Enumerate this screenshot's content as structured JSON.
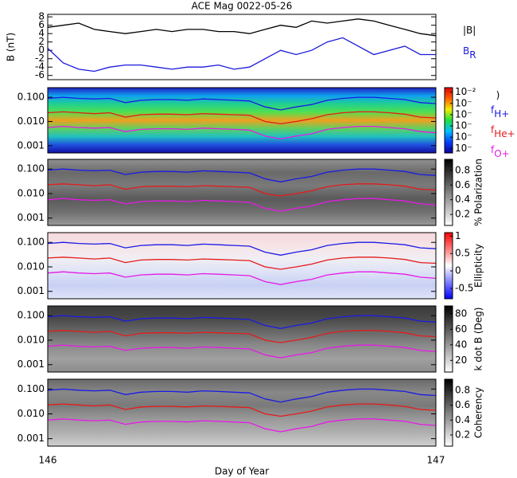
{
  "chart_data": [
    {
      "type": "line",
      "title": "ACE Mag 0022-05-26",
      "ylabel": "B (nT)",
      "xlim": [
        146,
        147
      ],
      "ylim": [
        -7,
        8.6
      ],
      "yticks": [
        -6,
        -4,
        -2,
        0,
        2,
        4,
        6,
        8
      ],
      "x": [
        146,
        146.04,
        146.08,
        146.12,
        146.16,
        146.2,
        146.24,
        146.28,
        146.32,
        146.36,
        146.4,
        146.44,
        146.48,
        146.52,
        146.56,
        146.6,
        146.64,
        146.68,
        146.72,
        146.76,
        146.8,
        146.84,
        146.88,
        146.92,
        146.96,
        147
      ],
      "series": [
        {
          "name": "|B|",
          "color": "#000000",
          "values": [
            5.5,
            6,
            6.5,
            5,
            4.5,
            4,
            4.5,
            5,
            4.5,
            5,
            5,
            4.5,
            4.5,
            4,
            5,
            6,
            5.5,
            7,
            6.5,
            7,
            7.5,
            7,
            6,
            5,
            4,
            3.5
          ]
        },
        {
          "name": "B",
          "name_sub": "R",
          "color": "#1a1adc",
          "values": [
            0.5,
            -3,
            -4.5,
            -5,
            -4,
            -3.5,
            -3.5,
            -4,
            -4.5,
            -4,
            -4,
            -3.5,
            -4.5,
            -4,
            -2,
            0,
            -1,
            0,
            2,
            3,
            1,
            -1,
            0,
            1,
            -1,
            -1
          ]
        }
      ]
    },
    {
      "type": "spectrogram",
      "ylim": [
        0.0005,
        0.25
      ],
      "log": true,
      "yticks": [
        {
          "value": 0.001,
          "label": "0.001"
        },
        {
          "value": 0.01,
          "label": "0.010"
        },
        {
          "value": 0.1,
          "label": "0.100"
        }
      ],
      "xlim": [
        146,
        147
      ],
      "x": [
        146,
        146.04,
        146.08,
        146.12,
        146.16,
        146.2,
        146.24,
        146.28,
        146.32,
        146.36,
        146.4,
        146.44,
        146.48,
        146.52,
        146.56,
        146.6,
        146.64,
        146.68,
        146.72,
        146.76,
        146.8,
        146.84,
        146.88,
        146.92,
        146.96,
        147
      ],
      "background": [
        "#2020c0",
        "#10a0f0",
        "#20d090",
        "#50e050",
        "#f0a020",
        "#60d060",
        "#20c0c0",
        "#2050e0",
        "#1010a0"
      ],
      "colorbar": {
        "label": ")",
        "lim": [
          -7.4,
          -1.6
        ],
        "colors": [
          "#10009a",
          "#0040ff",
          "#00c0ff",
          "#20e040",
          "#f0f000",
          "#ff6000",
          "#e00000"
        ],
        "ticks": [
          {
            "value": -2,
            "label": "10⁻²"
          },
          {
            "value": -3,
            "label": "10⁻"
          },
          {
            "value": -4,
            "label": "10⁻"
          },
          {
            "value": -5,
            "label": "10⁻"
          },
          {
            "value": -6,
            "label": "10⁻"
          },
          {
            "value": -7,
            "label": "10⁻"
          }
        ]
      },
      "series": [
        {
          "name": "f",
          "name_sub": "H+",
          "color": "#1a1ae6",
          "values": [
            0.09,
            0.1,
            0.09,
            0.085,
            0.09,
            0.06,
            0.075,
            0.08,
            0.08,
            0.075,
            0.085,
            0.08,
            0.075,
            0.07,
            0.04,
            0.03,
            0.04,
            0.05,
            0.075,
            0.09,
            0.1,
            0.1,
            0.09,
            0.08,
            0.06,
            0.055
          ]
        },
        {
          "name": "f",
          "name_sub": "He+",
          "color": "#e61a1a",
          "values": [
            0.023,
            0.025,
            0.023,
            0.021,
            0.023,
            0.015,
            0.019,
            0.02,
            0.02,
            0.019,
            0.021,
            0.02,
            0.019,
            0.018,
            0.01,
            0.008,
            0.01,
            0.013,
            0.019,
            0.023,
            0.025,
            0.025,
            0.023,
            0.02,
            0.015,
            0.014
          ]
        },
        {
          "name": "f",
          "name_sub": "O+",
          "color": "#e61ae6",
          "values": [
            0.0056,
            0.0063,
            0.0056,
            0.0053,
            0.0056,
            0.0038,
            0.0047,
            0.005,
            0.005,
            0.0047,
            0.0053,
            0.005,
            0.0047,
            0.0044,
            0.0025,
            0.0019,
            0.0025,
            0.0031,
            0.0047,
            0.0056,
            0.0063,
            0.0063,
            0.0056,
            0.005,
            0.0038,
            0.0034
          ]
        }
      ]
    },
    {
      "type": "spectrogram",
      "ylim": [
        0.0005,
        0.25
      ],
      "log": true,
      "yticks": [
        {
          "value": 0.001,
          "label": "0.001"
        },
        {
          "value": 0.01,
          "label": "0.010"
        },
        {
          "value": 0.1,
          "label": "0.100"
        }
      ],
      "xlim": [
        146,
        147
      ],
      "x": [
        146,
        146.04,
        146.08,
        146.12,
        146.16,
        146.2,
        146.24,
        146.28,
        146.32,
        146.36,
        146.4,
        146.44,
        146.48,
        146.52,
        146.56,
        146.6,
        146.64,
        146.68,
        146.72,
        146.76,
        146.8,
        146.84,
        146.88,
        146.92,
        146.96,
        147
      ],
      "background": [
        "#909090",
        "#6a6a6a",
        "#7a7a7a",
        "#5a5a5a",
        "#707070",
        "#9a9a9a"
      ],
      "colorbar": {
        "label": "% Polarization",
        "lim": [
          0.05,
          0.95
        ],
        "colors": [
          "#ffffff",
          "#000000"
        ],
        "ticks": [
          0.2,
          0.4,
          0.6,
          0.8
        ]
      },
      "series": [
        {
          "color": "#1a1ae6",
          "values": [
            0.09,
            0.1,
            0.09,
            0.085,
            0.09,
            0.06,
            0.075,
            0.08,
            0.08,
            0.075,
            0.085,
            0.08,
            0.075,
            0.07,
            0.04,
            0.03,
            0.04,
            0.05,
            0.075,
            0.09,
            0.1,
            0.1,
            0.09,
            0.08,
            0.06,
            0.055
          ]
        },
        {
          "color": "#e61a1a",
          "values": [
            0.023,
            0.025,
            0.023,
            0.021,
            0.023,
            0.015,
            0.019,
            0.02,
            0.02,
            0.019,
            0.021,
            0.02,
            0.019,
            0.018,
            0.01,
            0.008,
            0.01,
            0.013,
            0.019,
            0.023,
            0.025,
            0.025,
            0.023,
            0.02,
            0.015,
            0.014
          ]
        },
        {
          "color": "#e61ae6",
          "values": [
            0.0056,
            0.0063,
            0.0056,
            0.0053,
            0.0056,
            0.0038,
            0.0047,
            0.005,
            0.005,
            0.0047,
            0.0053,
            0.005,
            0.0047,
            0.0044,
            0.0025,
            0.0019,
            0.0025,
            0.0031,
            0.0047,
            0.0056,
            0.0063,
            0.0063,
            0.0056,
            0.005,
            0.0038,
            0.0034
          ]
        }
      ]
    },
    {
      "type": "spectrogram",
      "ylim": [
        0.0005,
        0.25
      ],
      "log": true,
      "yticks": [
        {
          "value": 0.001,
          "label": "0.001"
        },
        {
          "value": 0.01,
          "label": "0.010"
        },
        {
          "value": 0.1,
          "label": "0.100"
        }
      ],
      "xlim": [
        146,
        147
      ],
      "x": [
        146,
        146.04,
        146.08,
        146.12,
        146.16,
        146.2,
        146.24,
        146.28,
        146.32,
        146.36,
        146.4,
        146.44,
        146.48,
        146.52,
        146.56,
        146.6,
        146.64,
        146.68,
        146.72,
        146.76,
        146.8,
        146.84,
        146.88,
        146.92,
        146.96,
        147
      ],
      "background": [
        "#f4d8dc",
        "#f6e4e6",
        "#f0eef4",
        "#dde2f6",
        "#c8d0f4",
        "#e0e4f8"
      ],
      "colorbar": {
        "label": "Ellipticity",
        "lim": [
          -0.8,
          1.1
        ],
        "colors": [
          "#0000ff",
          "#ffffff",
          "#ff0000"
        ],
        "ticks": [
          -0.5,
          0,
          0.5,
          1
        ]
      },
      "series": [
        {
          "color": "#1a1ae6",
          "values": [
            0.09,
            0.1,
            0.09,
            0.085,
            0.09,
            0.06,
            0.075,
            0.08,
            0.08,
            0.075,
            0.085,
            0.08,
            0.075,
            0.07,
            0.04,
            0.03,
            0.04,
            0.05,
            0.075,
            0.09,
            0.1,
            0.1,
            0.09,
            0.08,
            0.06,
            0.055
          ]
        },
        {
          "color": "#e61a1a",
          "values": [
            0.023,
            0.025,
            0.023,
            0.021,
            0.023,
            0.015,
            0.019,
            0.02,
            0.02,
            0.019,
            0.021,
            0.02,
            0.019,
            0.018,
            0.01,
            0.008,
            0.01,
            0.013,
            0.019,
            0.023,
            0.025,
            0.025,
            0.023,
            0.02,
            0.015,
            0.014
          ]
        },
        {
          "color": "#e61ae6",
          "values": [
            0.0056,
            0.0063,
            0.0056,
            0.0053,
            0.0056,
            0.0038,
            0.0047,
            0.005,
            0.005,
            0.0047,
            0.0053,
            0.005,
            0.0047,
            0.0044,
            0.0025,
            0.0019,
            0.0025,
            0.0031,
            0.0047,
            0.0056,
            0.0063,
            0.0063,
            0.0056,
            0.005,
            0.0038,
            0.0034
          ]
        }
      ]
    },
    {
      "type": "spectrogram",
      "ylim": [
        0.0005,
        0.25
      ],
      "log": true,
      "yticks": [
        {
          "value": 0.001,
          "label": "0.001"
        },
        {
          "value": 0.01,
          "label": "0.010"
        },
        {
          "value": 0.1,
          "label": "0.100"
        }
      ],
      "xlim": [
        146,
        147
      ],
      "x": [
        146,
        146.04,
        146.08,
        146.12,
        146.16,
        146.2,
        146.24,
        146.28,
        146.32,
        146.36,
        146.4,
        146.44,
        146.48,
        146.52,
        146.56,
        146.6,
        146.64,
        146.68,
        146.72,
        146.76,
        146.8,
        146.84,
        146.88,
        146.92,
        146.96,
        147
      ],
      "background": [
        "#3a3a3a",
        "#4a4a4a",
        "#6a6a6a",
        "#8a8a8a",
        "#a0a0a0",
        "#8c8c8c"
      ],
      "colorbar": {
        "label": "k dot B (Deg)",
        "lim": [
          5,
          90
        ],
        "colors": [
          "#ffffff",
          "#000000"
        ],
        "ticks": [
          20,
          40,
          60,
          80
        ]
      },
      "series": [
        {
          "color": "#1a1ae6",
          "values": [
            0.09,
            0.1,
            0.09,
            0.085,
            0.09,
            0.06,
            0.075,
            0.08,
            0.08,
            0.075,
            0.085,
            0.08,
            0.075,
            0.07,
            0.04,
            0.03,
            0.04,
            0.05,
            0.075,
            0.09,
            0.1,
            0.1,
            0.09,
            0.08,
            0.06,
            0.055
          ]
        },
        {
          "color": "#e61a1a",
          "values": [
            0.023,
            0.025,
            0.023,
            0.021,
            0.023,
            0.015,
            0.019,
            0.02,
            0.02,
            0.019,
            0.021,
            0.02,
            0.019,
            0.018,
            0.01,
            0.008,
            0.01,
            0.013,
            0.019,
            0.023,
            0.025,
            0.025,
            0.023,
            0.02,
            0.015,
            0.014
          ]
        },
        {
          "color": "#e61ae6",
          "values": [
            0.0056,
            0.0063,
            0.0056,
            0.0053,
            0.0056,
            0.0038,
            0.0047,
            0.005,
            0.005,
            0.0047,
            0.0053,
            0.005,
            0.0047,
            0.0044,
            0.0025,
            0.0019,
            0.0025,
            0.0031,
            0.0047,
            0.0056,
            0.0063,
            0.0063,
            0.0056,
            0.005,
            0.0038,
            0.0034
          ]
        }
      ]
    },
    {
      "type": "spectrogram",
      "ylim": [
        0.0005,
        0.25
      ],
      "log": true,
      "yticks": [
        {
          "value": 0.001,
          "label": "0.001"
        },
        {
          "value": 0.01,
          "label": "0.010"
        },
        {
          "value": 0.1,
          "label": "0.100"
        }
      ],
      "xlim": [
        146,
        147
      ],
      "xticks": [
        146,
        147
      ],
      "xlabel": "Day of Year",
      "x": [
        146,
        146.04,
        146.08,
        146.12,
        146.16,
        146.2,
        146.24,
        146.28,
        146.32,
        146.36,
        146.4,
        146.44,
        146.48,
        146.52,
        146.56,
        146.6,
        146.64,
        146.68,
        146.72,
        146.76,
        146.8,
        146.84,
        146.88,
        146.92,
        146.96,
        147
      ],
      "background": [
        "#6a6a6a",
        "#888888",
        "#7a7a7a",
        "#9a9a9a",
        "#b0b0b0",
        "#d0d0d0"
      ],
      "colorbar": {
        "label": "Coherency",
        "lim": [
          0.05,
          0.95
        ],
        "colors": [
          "#ffffff",
          "#000000"
        ],
        "ticks": [
          0.2,
          0.4,
          0.6,
          0.8
        ]
      },
      "series": [
        {
          "color": "#1a1ae6",
          "values": [
            0.09,
            0.1,
            0.09,
            0.085,
            0.09,
            0.06,
            0.075,
            0.08,
            0.08,
            0.075,
            0.085,
            0.08,
            0.075,
            0.07,
            0.04,
            0.03,
            0.04,
            0.05,
            0.075,
            0.09,
            0.1,
            0.1,
            0.09,
            0.08,
            0.06,
            0.055
          ]
        },
        {
          "color": "#e61a1a",
          "values": [
            0.023,
            0.025,
            0.023,
            0.021,
            0.023,
            0.015,
            0.019,
            0.02,
            0.02,
            0.019,
            0.021,
            0.02,
            0.019,
            0.018,
            0.01,
            0.008,
            0.01,
            0.013,
            0.019,
            0.023,
            0.025,
            0.025,
            0.023,
            0.02,
            0.015,
            0.014
          ]
        },
        {
          "color": "#e61ae6",
          "values": [
            0.0056,
            0.0063,
            0.0056,
            0.0053,
            0.0056,
            0.0038,
            0.0047,
            0.005,
            0.005,
            0.0047,
            0.0053,
            0.005,
            0.0047,
            0.0044,
            0.0025,
            0.0019,
            0.0025,
            0.0031,
            0.0047,
            0.0056,
            0.0063,
            0.0063,
            0.0056,
            0.005,
            0.0038,
            0.0034
          ]
        }
      ]
    }
  ]
}
